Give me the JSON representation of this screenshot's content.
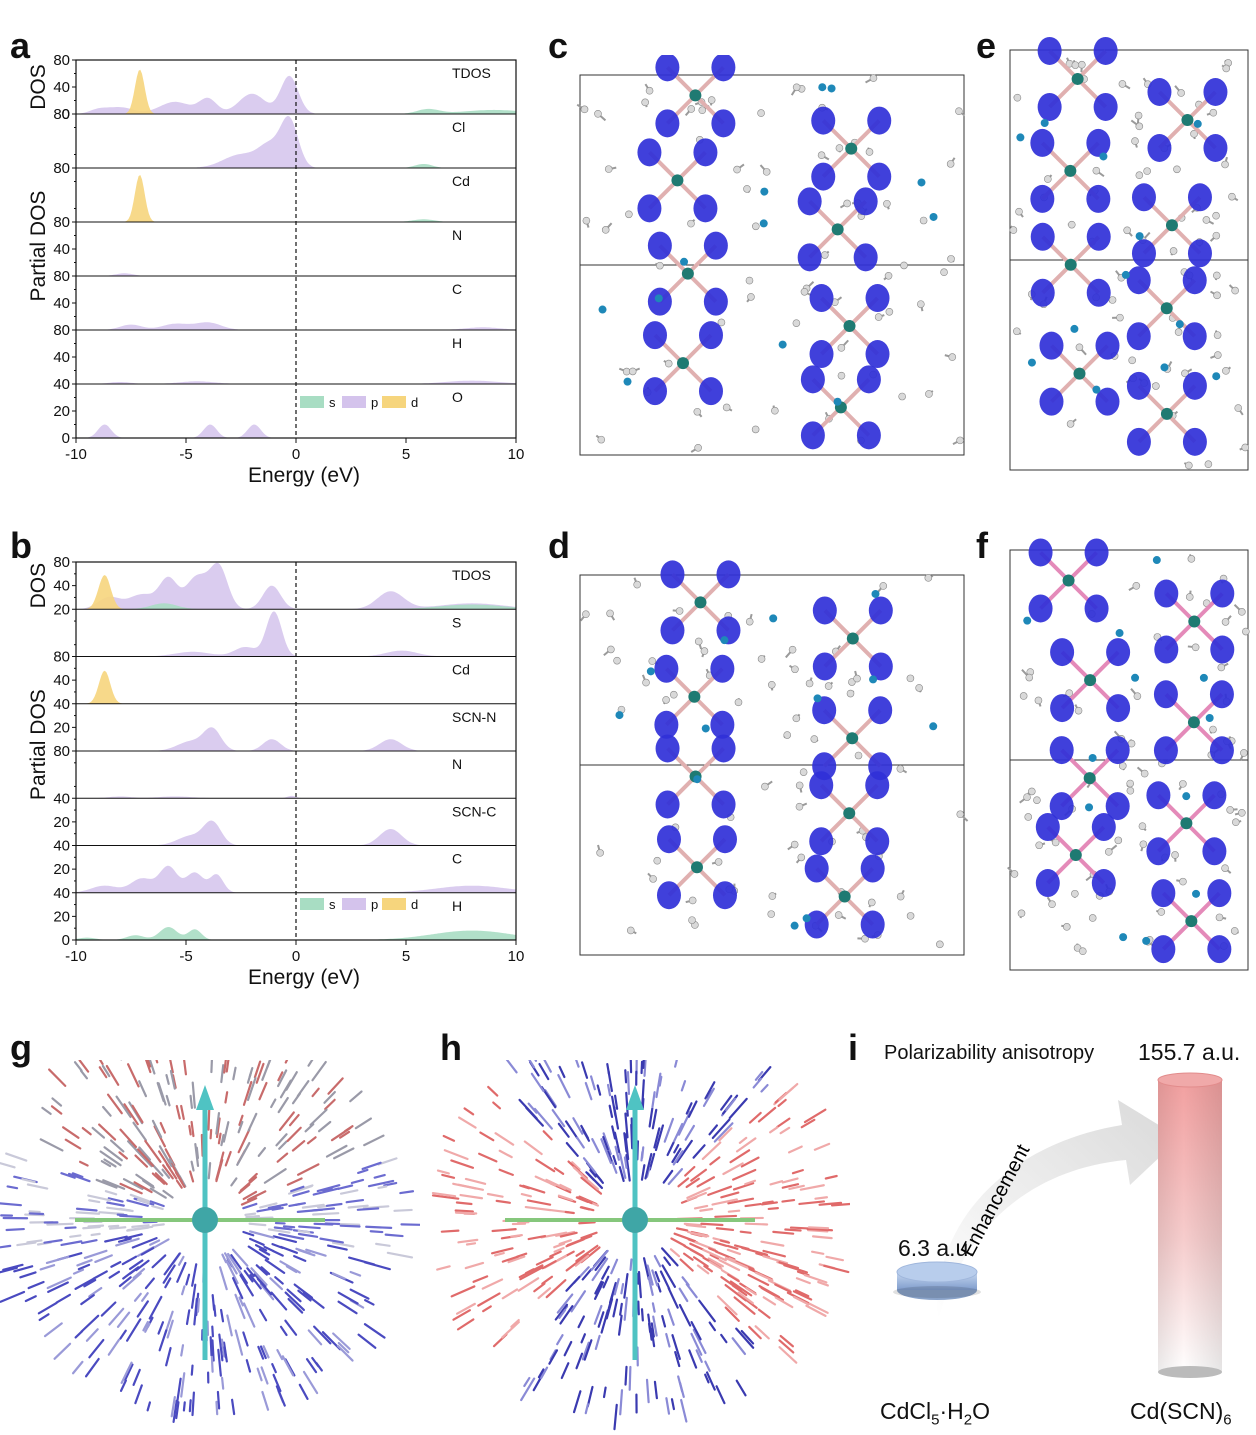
{
  "panel_letters": {
    "a": "a",
    "b": "b",
    "c": "c",
    "d": "d",
    "e": "e",
    "f": "f",
    "g": "g",
    "h": "h",
    "i": "i"
  },
  "colors": {
    "s": "#a8ddc3",
    "p": "#d4c3ec",
    "d": "#f6d57d",
    "isosurface": "#3030d8",
    "cd_atom": "#1f7a72",
    "tube_top": "#f0a9a9",
    "disk": "#a9c4e6"
  },
  "legend": {
    "s": "s",
    "p": "p",
    "d": "d"
  },
  "chart_data": [
    {
      "type": "area",
      "panel": "a",
      "xlabel": "Energy (eV)",
      "ylabel_top": "DOS",
      "ylabel_partial": "Partial DOS",
      "xlim": [
        -10,
        10
      ],
      "xticks": [
        "-10",
        "-5",
        "0",
        "5",
        "10"
      ],
      "fermi_level": 0,
      "rows": [
        {
          "label": "TDOS",
          "yticks": [
            "80",
            "40",
            "0"
          ],
          "ymax": 80,
          "series": [
            {
              "orbital": "d",
              "peaks": [
                [
                  -7.1,
                  66,
                  0.22
                ]
              ]
            },
            {
              "orbital": "p",
              "peaks": [
                [
                  -9,
                  6,
                  0.4
                ],
                [
                  -8,
                  10,
                  0.6
                ],
                [
                  -5.5,
                  18,
                  0.7
                ],
                [
                  -4,
                  22,
                  0.4
                ],
                [
                  -2,
                  30,
                  0.6
                ],
                [
                  -0.3,
                  56,
                  0.4
                ]
              ]
            },
            {
              "orbital": "s",
              "peaks": [
                [
                  6,
                  7,
                  0.5
                ],
                [
                  9,
                  6,
                  1.4
                ]
              ]
            }
          ]
        },
        {
          "label": "Cl",
          "yticks": [
            "80"
          ],
          "ymax": 80,
          "series": [
            {
              "orbital": "p",
              "peaks": [
                [
                  -2.5,
                  20,
                  0.8
                ],
                [
                  -0.3,
                  70,
                  0.4
                ],
                [
                  -1.2,
                  30,
                  0.5
                ]
              ]
            },
            {
              "orbital": "s",
              "peaks": [
                [
                  5.8,
                  6,
                  0.4
                ]
              ]
            }
          ]
        },
        {
          "label": "Cd",
          "yticks": [
            "80"
          ],
          "ymax": 80,
          "series": [
            {
              "orbital": "d",
              "peaks": [
                [
                  -7.1,
                  70,
                  0.22
                ]
              ]
            },
            {
              "orbital": "s",
              "peaks": [
                [
                  5.8,
                  4,
                  0.5
                ]
              ]
            }
          ]
        },
        {
          "label": "N",
          "yticks": [
            "80",
            "40"
          ],
          "ymax": 80,
          "series": [
            {
              "orbital": "p",
              "peaks": [
                [
                  -7.8,
                  4,
                  0.4
                ]
              ]
            }
          ]
        },
        {
          "label": "C",
          "yticks": [
            "80",
            "40"
          ],
          "ymax": 80,
          "series": [
            {
              "orbital": "p",
              "peaks": [
                [
                  -7.5,
                  8,
                  0.5
                ],
                [
                  -5.5,
                  9,
                  0.6
                ],
                [
                  -4,
                  11,
                  0.6
                ],
                [
                  8.5,
                  4,
                  0.8
                ]
              ]
            }
          ]
        },
        {
          "label": "H",
          "yticks": [
            "80",
            "40"
          ],
          "ymax": 80,
          "series": [
            {
              "orbital": "p",
              "peaks": [
                [
                  -8,
                  3,
                  0.5
                ],
                [
                  -4.5,
                  4,
                  0.8
                ],
                [
                  8,
                  5,
                  1.2
                ]
              ]
            }
          ]
        },
        {
          "label": "O",
          "yticks": [
            "40",
            "20",
            "0"
          ],
          "ymax": 40,
          "series": [
            {
              "orbital": "p",
              "peaks": [
                [
                  -8.7,
                  10,
                  0.3
                ],
                [
                  -3.9,
                  10,
                  0.3
                ],
                [
                  -1.9,
                  10,
                  0.3
                ]
              ]
            }
          ]
        }
      ]
    },
    {
      "type": "area",
      "panel": "b",
      "xlabel": "Energy (eV)",
      "ylabel_top": "DOS",
      "ylabel_partial": "Partial DOS",
      "xlim": [
        -10,
        10
      ],
      "xticks": [
        "-10",
        "-5",
        "0",
        "5",
        "10"
      ],
      "fermi_level": 0,
      "rows": [
        {
          "label": "TDOS",
          "yticks": [
            "80",
            "40"
          ],
          "ymax": 80,
          "series": [
            {
              "orbital": "p",
              "peaks": [
                [
                  -8.5,
                  20,
                  0.5
                ],
                [
                  -7,
                  25,
                  0.6
                ],
                [
                  -5.8,
                  50,
                  0.4
                ],
                [
                  -4.5,
                  55,
                  0.5
                ],
                [
                  -3.5,
                  70,
                  0.4
                ],
                [
                  -1.1,
                  40,
                  0.4
                ],
                [
                  4.3,
                  30,
                  0.6
                ],
                [
                  8,
                  10,
                  1.5
                ]
              ]
            },
            {
              "orbital": "d",
              "peaks": [
                [
                  -8.7,
                  58,
                  0.28
                ]
              ]
            },
            {
              "orbital": "s",
              "peaks": [
                [
                  -6,
                  10,
                  0.6
                ],
                [
                  8,
                  8,
                  1.5
                ]
              ]
            }
          ]
        },
        {
          "label": "S",
          "yticks": [
            "20"
          ],
          "ymax": 40,
          "series": [
            {
              "orbital": "p",
              "peaks": [
                [
                  -4.7,
                  4,
                  0.8
                ],
                [
                  -1,
                  38,
                  0.35
                ],
                [
                  -2.3,
                  8,
                  0.5
                ],
                [
                  4.8,
                  5,
                  0.7
                ]
              ]
            }
          ]
        },
        {
          "label": "Cd",
          "yticks": [
            "80",
            "40"
          ],
          "ymax": 80,
          "series": [
            {
              "orbital": "d",
              "peaks": [
                [
                  -8.7,
                  56,
                  0.26
                ]
              ]
            }
          ]
        },
        {
          "label": "SCN-N",
          "yticks": [
            "40",
            "20"
          ],
          "ymax": 40,
          "series": [
            {
              "orbital": "p",
              "peaks": [
                [
                  -4.8,
                  8,
                  0.6
                ],
                [
                  -3.8,
                  18,
                  0.4
                ],
                [
                  -1.1,
                  10,
                  0.4
                ],
                [
                  4.3,
                  10,
                  0.5
                ]
              ]
            }
          ]
        },
        {
          "label": "N",
          "yticks": [
            "80"
          ],
          "ymax": 80,
          "series": [
            {
              "orbital": "p",
              "peaks": [
                [
                  -8,
                  3,
                  0.5
                ],
                [
                  -5.5,
                  3,
                  0.8
                ],
                [
                  -0.2,
                  4,
                  0.2
                ]
              ]
            }
          ]
        },
        {
          "label": "SCN-C",
          "yticks": [
            "40",
            "20"
          ],
          "ymax": 40,
          "series": [
            {
              "orbital": "p",
              "peaks": [
                [
                  -4.8,
                  8,
                  0.6
                ],
                [
                  -3.8,
                  19,
                  0.4
                ],
                [
                  4.3,
                  14,
                  0.5
                ]
              ]
            }
          ]
        },
        {
          "label": "C",
          "yticks": [
            "40",
            "20"
          ],
          "ymax": 40,
          "series": [
            {
              "orbital": "p",
              "peaks": [
                [
                  -8.7,
                  6,
                  0.6
                ],
                [
                  -7,
                  12,
                  0.5
                ],
                [
                  -5.8,
                  22,
                  0.4
                ],
                [
                  -4.6,
                  17,
                  0.4
                ],
                [
                  -3.6,
                  15,
                  0.3
                ],
                [
                  8,
                  6,
                  1.6
                ]
              ]
            }
          ]
        },
        {
          "label": "H",
          "yticks": [
            "40",
            "20",
            "0"
          ],
          "ymax": 40,
          "series": [
            {
              "orbital": "s",
              "peaks": [
                [
                  -9.5,
                  2,
                  0.4
                ],
                [
                  -7.3,
                  4,
                  0.4
                ],
                [
                  -5.8,
                  11,
                  0.4
                ],
                [
                  -4.6,
                  9,
                  0.3
                ],
                [
                  8,
                  8,
                  1.8
                ]
              ]
            }
          ]
        }
      ]
    },
    {
      "type": "bar",
      "panel": "i",
      "title": "Polarizability anisotropy",
      "categories": [
        "CdCl5·H2O",
        "Cd(SCN)6"
      ],
      "values": [
        6.3,
        155.7
      ],
      "value_labels": [
        "6.3 a.u.",
        "155.7 a.u."
      ],
      "arrow_label": "Enhancement"
    }
  ],
  "panel_i": {
    "title": "Polarizability anisotropy",
    "high_value": "155.7 a.u.",
    "low_value": "6.3 a.u.",
    "arrow_label": "Enhancement",
    "cat1_main": "CdCl",
    "cat1_sub1": "5",
    "cat1_mid": "·H",
    "cat1_sub2": "2",
    "cat1_end": "O",
    "cat2_main": "Cd(SCN)",
    "cat2_sub": "6"
  }
}
